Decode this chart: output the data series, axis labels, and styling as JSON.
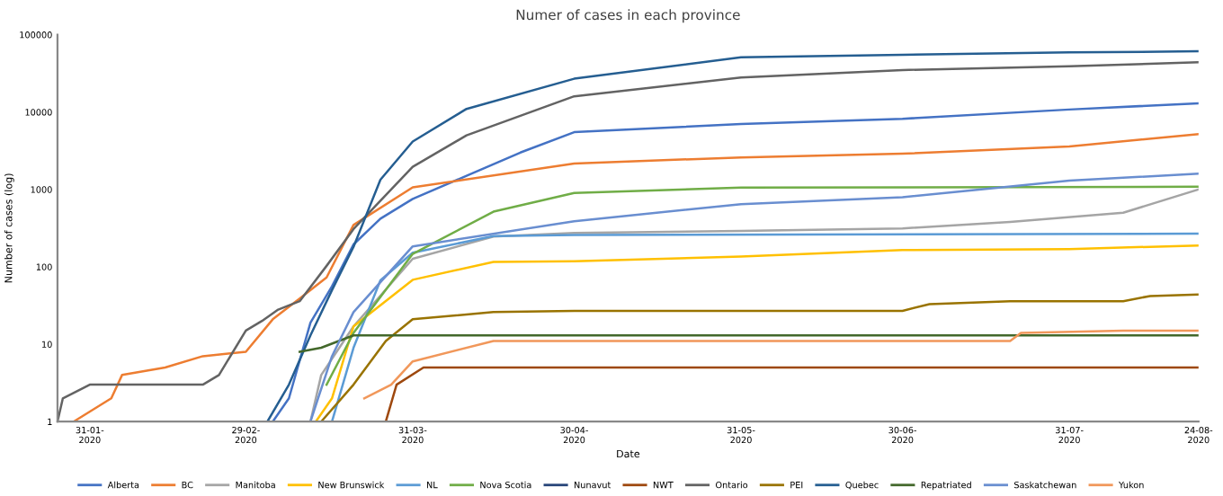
{
  "chart_data": {
    "type": "line",
    "title": "Numer of cases in each province",
    "xlabel": "Date",
    "ylabel": "Number of cases (log)",
    "log": "y",
    "grid": false,
    "legend": "bottom",
    "marker": "none",
    "line_style": "solid",
    "xlim": [
      "2020-01-25",
      "2020-08-24"
    ],
    "xticks": [
      {
        "value": "2020-01-31",
        "label": "31-01-\n2020"
      },
      {
        "value": "2020-02-29",
        "label": "29-02-\n2020"
      },
      {
        "value": "2020-03-31",
        "label": "31-03-\n2020"
      },
      {
        "value": "2020-04-30",
        "label": "30-04-\n2020"
      },
      {
        "value": "2020-05-31",
        "label": "31-05-\n2020"
      },
      {
        "value": "2020-06-30",
        "label": "30-06-\n2020"
      },
      {
        "value": "2020-07-31",
        "label": "31-07-\n2020"
      },
      {
        "value": "2020-08-24",
        "label": "24-08-\n2020"
      }
    ],
    "ylim": [
      1,
      100000
    ],
    "yticks": [
      1,
      10,
      100,
      1000,
      10000,
      100000
    ],
    "series": [
      {
        "name": "Alberta",
        "color": "#4472c4",
        "x": [
          "2020-03-05",
          "2020-03-08",
          "2020-03-12",
          "2020-03-16",
          "2020-03-20",
          "2020-03-25",
          "2020-03-31",
          "2020-04-10",
          "2020-04-20",
          "2020-04-30",
          "2020-05-31",
          "2020-06-30",
          "2020-07-31",
          "2020-08-24"
        ],
        "values": [
          1,
          2,
          19,
          56,
          195,
          419,
          754,
          1500,
          3000,
          5500,
          7000,
          8200,
          10800,
          13000
        ]
      },
      {
        "name": "BC",
        "color": "#ed7d31",
        "x": [
          "2020-01-28",
          "2020-02-04",
          "2020-02-06",
          "2020-02-14",
          "2020-02-21",
          "2020-02-29",
          "2020-03-05",
          "2020-03-10",
          "2020-03-15",
          "2020-03-20",
          "2020-03-31",
          "2020-04-30",
          "2020-05-31",
          "2020-06-30",
          "2020-07-31",
          "2020-08-24"
        ],
        "values": [
          1,
          2,
          4,
          5,
          7,
          8,
          21,
          39,
          73,
          348,
          1066,
          2170,
          2600,
          2900,
          3600,
          5200
        ]
      },
      {
        "name": "Manitoba",
        "color": "#a5a5a5",
        "x": [
          "2020-03-12",
          "2020-03-14",
          "2020-03-20",
          "2020-03-31",
          "2020-04-15",
          "2020-04-30",
          "2020-05-31",
          "2020-06-30",
          "2020-07-20",
          "2020-08-10",
          "2020-08-24"
        ],
        "values": [
          1,
          4,
          17,
          127,
          246,
          275,
          292,
          314,
          380,
          500,
          1000
        ]
      },
      {
        "name": "New Brunswick",
        "color": "#ffc000",
        "x": [
          "2020-03-13",
          "2020-03-16",
          "2020-03-20",
          "2020-03-31",
          "2020-04-15",
          "2020-04-30",
          "2020-05-31",
          "2020-06-30",
          "2020-07-31",
          "2020-08-24"
        ],
        "values": [
          1,
          2,
          17,
          68,
          116,
          118,
          136,
          165,
          170,
          189
        ]
      },
      {
        "name": "NL",
        "color": "#5b9bd5",
        "x": [
          "2020-03-16",
          "2020-03-20",
          "2020-03-25",
          "2020-03-31",
          "2020-04-15",
          "2020-04-30",
          "2020-08-24"
        ],
        "values": [
          1,
          9,
          67,
          152,
          250,
          259,
          268
        ]
      },
      {
        "name": "Nova Scotia",
        "color": "#70ad47",
        "x": [
          "2020-03-15",
          "2020-03-20",
          "2020-03-31",
          "2020-04-15",
          "2020-04-30",
          "2020-05-31",
          "2020-08-24"
        ],
        "values": [
          3,
          14,
          147,
          517,
          900,
          1056,
          1085
        ]
      },
      {
        "name": "Nunavut",
        "color": "#264478"
      },
      {
        "name": "NWT",
        "color": "#9e480e",
        "x": [
          "2020-03-26",
          "2020-03-28",
          "2020-04-02",
          "2020-08-24"
        ],
        "values": [
          1,
          3,
          5,
          5
        ]
      },
      {
        "name": "Ontario",
        "color": "#636363",
        "x": [
          "2020-01-25",
          "2020-01-26",
          "2020-01-31",
          "2020-02-21",
          "2020-02-24",
          "2020-02-29",
          "2020-03-03",
          "2020-03-06",
          "2020-03-10",
          "2020-03-15",
          "2020-03-20",
          "2020-03-31",
          "2020-04-10",
          "2020-04-30",
          "2020-05-31",
          "2020-06-30",
          "2020-07-31",
          "2020-08-24"
        ],
        "values": [
          1,
          2,
          3,
          3,
          4,
          15,
          20,
          28,
          36,
          103,
          308,
          1966,
          5000,
          16000,
          28000,
          35000,
          39000,
          44000
        ]
      },
      {
        "name": "PEI",
        "color": "#997300",
        "x": [
          "2020-03-14",
          "2020-03-20",
          "2020-03-26",
          "2020-03-31",
          "2020-04-15",
          "2020-04-30",
          "2020-06-30",
          "2020-07-05",
          "2020-07-20",
          "2020-08-10",
          "2020-08-15",
          "2020-08-24"
        ],
        "values": [
          1,
          3,
          11,
          21,
          26,
          27,
          27,
          33,
          36,
          36,
          42,
          44
        ]
      },
      {
        "name": "Quebec",
        "color": "#255e91",
        "x": [
          "2020-03-04",
          "2020-03-08",
          "2020-03-12",
          "2020-03-16",
          "2020-03-20",
          "2020-03-25",
          "2020-03-31",
          "2020-04-10",
          "2020-04-30",
          "2020-05-31",
          "2020-06-30",
          "2020-07-31",
          "2020-08-24"
        ],
        "values": [
          1,
          3,
          13,
          50,
          181,
          1339,
          4162,
          11000,
          27000,
          51000,
          55000,
          59000,
          61000
        ]
      },
      {
        "name": "Repatriated",
        "color": "#43682b",
        "x": [
          "2020-03-10",
          "2020-03-14",
          "2020-03-20",
          "2020-08-24"
        ],
        "values": [
          8,
          9,
          13,
          13
        ]
      },
      {
        "name": "Saskatchewan",
        "color": "#698ed0",
        "x": [
          "2020-03-12",
          "2020-03-16",
          "2020-03-20",
          "2020-03-31",
          "2020-04-30",
          "2020-05-31",
          "2020-06-30",
          "2020-07-31",
          "2020-08-24"
        ],
        "values": [
          1,
          7,
          26,
          184,
          389,
          646,
          796,
          1300,
          1600
        ]
      },
      {
        "name": "Yukon",
        "color": "#f1975a",
        "x": [
          "2020-03-22",
          "2020-03-27",
          "2020-03-31",
          "2020-04-15",
          "2020-07-20",
          "2020-07-22",
          "2020-08-10",
          "2020-08-24"
        ],
        "values": [
          2,
          3,
          6,
          11,
          11,
          14,
          15,
          15
        ]
      }
    ]
  }
}
